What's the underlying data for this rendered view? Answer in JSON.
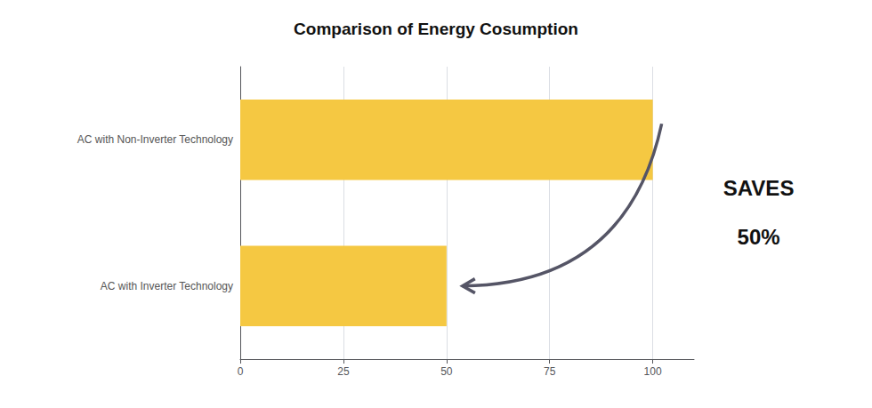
{
  "chart_data": {
    "type": "bar",
    "title": "Comparison of Energy Cosumption",
    "categories": [
      "AC with Inverter Technology",
      "AC with Non-Inverter Technology"
    ],
    "values": [
      50,
      100
    ],
    "color": "#F5C842",
    "orientation": "horizontal",
    "xlim": [
      0,
      110
    ],
    "xticks": [
      0,
      25,
      50,
      75,
      100
    ],
    "grid": true,
    "annotations": [
      "SAVES",
      "50%"
    ]
  }
}
